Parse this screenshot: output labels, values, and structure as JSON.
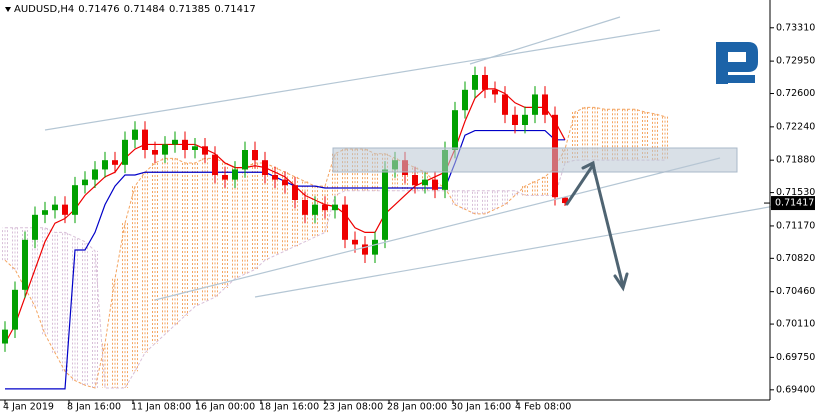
{
  "chart_data": {
    "type": "candlestick",
    "title": "AUDUSD,H4",
    "open": [
      0.699,
      0.7005,
      0.7048,
      0.7102,
      0.7129,
      0.7134,
      0.714,
      0.7129,
      0.7161,
      0.7167,
      0.7178,
      0.7188,
      0.7183,
      0.721,
      0.7221,
      0.7199,
      0.7194,
      0.7205,
      0.721,
      0.7199,
      0.7203,
      0.7194,
      0.7172,
      0.7167,
      0.7178,
      0.7199,
      0.7188,
      0.7172,
      0.7167,
      0.7161,
      0.7145,
      0.7129,
      0.714,
      0.7134,
      0.714,
      0.7102,
      0.7097,
      0.7086,
      0.7102,
      0.7178,
      0.7188,
      0.7172,
      0.7161,
      0.7167,
      0.7156,
      0.7199,
      0.7242,
      0.7264,
      0.728,
      0.7264,
      0.7259,
      0.7237,
      0.7226,
      0.7237,
      0.7259,
      0.7237,
      0.71476
    ],
    "high": [
      0.7014,
      0.7057,
      0.7111,
      0.7138,
      0.7143,
      0.7149,
      0.7149,
      0.717,
      0.7176,
      0.7187,
      0.7197,
      0.7197,
      0.7219,
      0.723,
      0.723,
      0.7208,
      0.7214,
      0.7219,
      0.7219,
      0.7212,
      0.7212,
      0.7203,
      0.7181,
      0.7187,
      0.7208,
      0.7208,
      0.7197,
      0.7181,
      0.7176,
      0.717,
      0.7154,
      0.7149,
      0.7149,
      0.7149,
      0.7149,
      0.7111,
      0.7106,
      0.7111,
      0.7187,
      0.7197,
      0.7197,
      0.7181,
      0.7176,
      0.7176,
      0.7208,
      0.7251,
      0.7273,
      0.7289,
      0.7289,
      0.7273,
      0.7268,
      0.7246,
      0.7246,
      0.7268,
      0.7268,
      0.7246,
      0.71484
    ],
    "low": [
      0.6981,
      0.6996,
      0.7039,
      0.7093,
      0.712,
      0.7125,
      0.712,
      0.712,
      0.7152,
      0.7158,
      0.7169,
      0.7174,
      0.7174,
      0.7201,
      0.719,
      0.7185,
      0.7185,
      0.7196,
      0.719,
      0.719,
      0.7185,
      0.7163,
      0.7158,
      0.7158,
      0.7169,
      0.7179,
      0.7163,
      0.7158,
      0.7152,
      0.7136,
      0.712,
      0.712,
      0.7125,
      0.7125,
      0.7093,
      0.7088,
      0.7077,
      0.7077,
      0.7093,
      0.7169,
      0.7163,
      0.7152,
      0.7152,
      0.7147,
      0.7147,
      0.719,
      0.7233,
      0.7255,
      0.7255,
      0.725,
      0.7228,
      0.7217,
      0.7217,
      0.7228,
      0.7228,
      0.7139,
      0.71385
    ],
    "close": [
      0.7005,
      0.7048,
      0.7102,
      0.7129,
      0.7134,
      0.714,
      0.7129,
      0.7161,
      0.7167,
      0.7178,
      0.7188,
      0.7183,
      0.721,
      0.7221,
      0.7199,
      0.7194,
      0.7205,
      0.721,
      0.7199,
      0.7203,
      0.7194,
      0.7172,
      0.7167,
      0.7178,
      0.7199,
      0.7188,
      0.7172,
      0.7167,
      0.7161,
      0.7145,
      0.7129,
      0.714,
      0.7134,
      0.714,
      0.7102,
      0.7097,
      0.7086,
      0.7102,
      0.7178,
      0.7188,
      0.7172,
      0.7161,
      0.7167,
      0.7156,
      0.7199,
      0.7242,
      0.7264,
      0.728,
      0.7264,
      0.7259,
      0.7237,
      0.7226,
      0.7237,
      0.7259,
      0.7237,
      0.7148,
      0.71417
    ],
    "up_color": "#00a000",
    "down_color": "#ee0000",
    "lines": [
      {
        "color": "#ee0000",
        "values": [
          0.699,
          0.701,
          0.704,
          0.707,
          0.71,
          0.712,
          0.7125,
          0.7135,
          0.715,
          0.716,
          0.717,
          0.7175,
          0.719,
          0.72,
          0.7205,
          0.7205,
          0.7205,
          0.7205,
          0.7205,
          0.7205,
          0.72,
          0.7195,
          0.7185,
          0.718,
          0.718,
          0.7182,
          0.718,
          0.7175,
          0.717,
          0.716,
          0.715,
          0.7145,
          0.714,
          0.7138,
          0.713,
          0.7115,
          0.711,
          0.711,
          0.713,
          0.714,
          0.715,
          0.716,
          0.7165,
          0.717,
          0.7175,
          0.72,
          0.723,
          0.7255,
          0.7265,
          0.7265,
          0.726,
          0.725,
          0.7245,
          0.7245,
          0.7245,
          0.723,
          0.721
        ]
      },
      {
        "color": "#0000c8",
        "values": [
          0.6941,
          0.6941,
          0.6941,
          0.6941,
          0.6941,
          0.6941,
          0.6941,
          0.7091,
          0.7091,
          0.711,
          0.714,
          0.716,
          0.7172,
          0.7172,
          0.7175,
          0.7175,
          0.7175,
          0.7175,
          0.7175,
          0.7175,
          0.7175,
          0.7175,
          0.7175,
          0.7175,
          0.7175,
          0.7175,
          0.7175,
          0.717,
          0.7165,
          0.716,
          0.716,
          0.716,
          0.7158,
          0.7158,
          0.7158,
          0.7158,
          0.7158,
          0.7158,
          0.7158,
          0.7158,
          0.7158,
          0.7158,
          0.7158,
          0.7158,
          0.7158,
          0.7185,
          0.7215,
          0.722,
          0.722,
          0.722,
          0.722,
          0.722,
          0.722,
          0.722,
          0.722,
          0.721,
          0.721
        ]
      }
    ],
    "cloud": {
      "up_color": "#f4a460",
      "down_color": "#d8bfd8",
      "span_a": [
        0.708,
        0.707,
        0.705,
        0.703,
        0.7,
        0.698,
        0.696,
        0.695,
        0.6945,
        0.6942,
        0.699,
        0.706,
        0.712,
        0.716,
        0.7175,
        0.7185,
        0.719,
        0.719,
        0.7185,
        0.7185,
        0.719,
        0.719,
        0.7185,
        0.718,
        0.718,
        0.7185,
        0.7185,
        0.718,
        0.7175,
        0.717,
        0.7165,
        0.716,
        0.716,
        0.7195,
        0.72,
        0.72,
        0.72,
        0.7195,
        0.7195,
        0.719,
        0.7185,
        0.718,
        0.7175,
        0.7165,
        0.7158,
        0.714,
        0.7135,
        0.713,
        0.713,
        0.7135,
        0.714,
        0.715,
        0.716,
        0.7165,
        0.717,
        0.718,
        0.72,
        0.724,
        0.7245,
        0.7245,
        0.7243,
        0.7243,
        0.7243,
        0.7243,
        0.724,
        0.7238,
        0.7235
      ],
      "span_b": [
        0.7115,
        0.7115,
        0.7115,
        0.7115,
        0.7115,
        0.711,
        0.711,
        0.7105,
        0.71,
        0.709,
        0.6942,
        0.6942,
        0.6942,
        0.696,
        0.698,
        0.699,
        0.7,
        0.701,
        0.702,
        0.703,
        0.7035,
        0.704,
        0.705,
        0.706,
        0.7065,
        0.707,
        0.708,
        0.7085,
        0.709,
        0.7095,
        0.71,
        0.7105,
        0.711,
        0.715,
        0.7155,
        0.7155,
        0.7155,
        0.7155,
        0.7155,
        0.7155,
        0.7155,
        0.7155,
        0.7155,
        0.7155,
        0.7155,
        0.7155,
        0.7155,
        0.7155,
        0.7155,
        0.7155,
        0.7155,
        0.7155,
        0.715,
        0.715,
        0.715,
        0.715,
        0.7185,
        0.7188,
        0.7188,
        0.7188,
        0.7188,
        0.7188,
        0.7188,
        0.7188,
        0.7188,
        0.7188,
        0.7188
      ]
    },
    "xlim": [
      -0.5,
      76.5
    ],
    "ylim": [
      0.6929,
      0.7361
    ],
    "xticks": [
      {
        "value": 0,
        "label": "4 Jan 2019"
      },
      {
        "value": 6.4,
        "label": "8 Jan 16:00"
      },
      {
        "value": 12.8,
        "label": "11 Jan 08:00"
      },
      {
        "value": 19.2,
        "label": "16 Jan 00:00"
      },
      {
        "value": 25.6,
        "label": "18 Jan 16:00"
      },
      {
        "value": 32,
        "label": "23 Jan 08:00"
      },
      {
        "value": 38.4,
        "label": "28 Jan 00:00"
      },
      {
        "value": 44.8,
        "label": "30 Jan 16:00"
      },
      {
        "value": 51.2,
        "label": "4 Feb 08:00"
      }
    ],
    "yticks": [
      {
        "value": 0.7331,
        "label": "0.73310"
      },
      {
        "value": 0.7295,
        "label": "0.72950"
      },
      {
        "value": 0.726,
        "label": "0.72600"
      },
      {
        "value": 0.7224,
        "label": "0.72240"
      },
      {
        "value": 0.7188,
        "label": "0.71880"
      },
      {
        "value": 0.7153,
        "label": "0.71530"
      },
      {
        "value": 0.7117,
        "label": "0.71170"
      },
      {
        "value": 0.7082,
        "label": "0.70820"
      },
      {
        "value": 0.7046,
        "label": "0.70460"
      },
      {
        "value": 0.7011,
        "label": "0.70110"
      },
      {
        "value": 0.6975,
        "label": "0.69750"
      },
      {
        "value": 0.694,
        "label": "0.69400"
      }
    ],
    "grid": false
  }
}
